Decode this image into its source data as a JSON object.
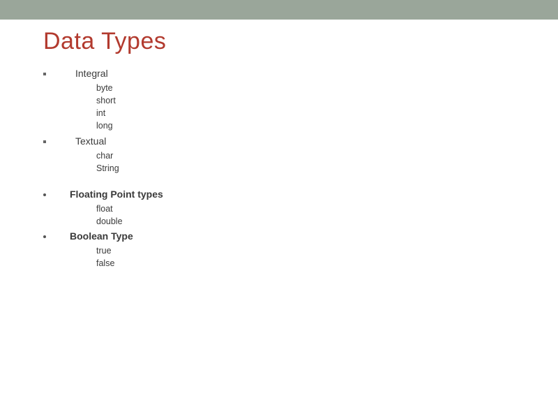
{
  "title": "Data Types",
  "title_color": "#b23a2e",
  "text_color": "#3a3a3a",
  "topbar_color": "#9aa69a",
  "background_color": "#ffffff",
  "categories": [
    {
      "label": "Integral",
      "bold": false,
      "items": [
        "byte",
        "short",
        "int",
        "long"
      ]
    },
    {
      "label": "Textual",
      "bold": false,
      "items": [
        "char",
        "String"
      ]
    },
    {
      "label": "Floating Point types",
      "bold": true,
      "items": [
        "float",
        "double"
      ]
    },
    {
      "label": "Boolean Type",
      "bold": true,
      "items": [
        "true",
        "false"
      ]
    }
  ]
}
